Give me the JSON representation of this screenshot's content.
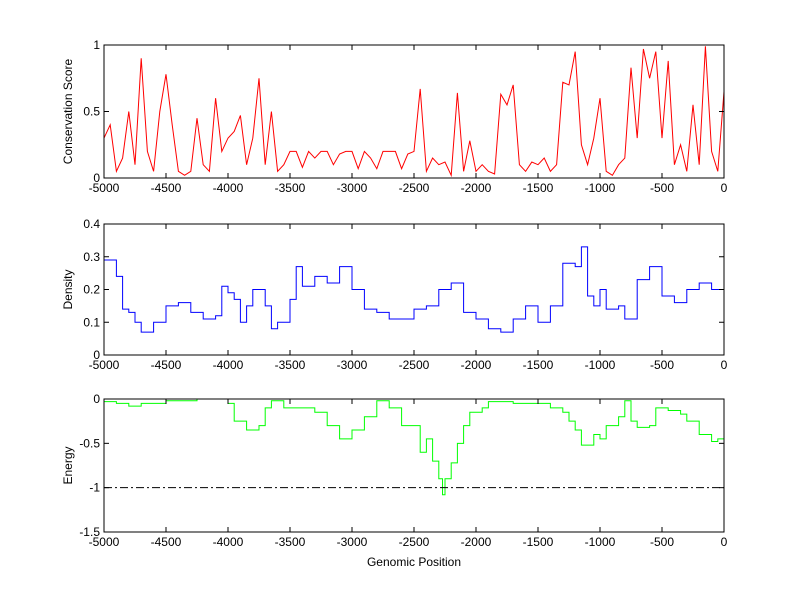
{
  "chart_data": [
    {
      "type": "line",
      "ylabel": "Conservation Score",
      "xlabel": "",
      "xlim": [
        -5000,
        0
      ],
      "ylim": [
        0,
        1
      ],
      "xticks": [
        -5000,
        -4500,
        -4000,
        -3500,
        -3000,
        -2500,
        -2000,
        -1500,
        -1000,
        -500,
        0
      ],
      "yticks": [
        0,
        0.5,
        1
      ],
      "color": "#ff0000",
      "step": false,
      "x_start": -5000,
      "x_step": 50,
      "values": [
        0.3,
        0.4,
        0.05,
        0.15,
        0.5,
        0.1,
        0.9,
        0.2,
        0.05,
        0.5,
        0.78,
        0.4,
        0.05,
        0.02,
        0.05,
        0.45,
        0.1,
        0.05,
        0.6,
        0.2,
        0.3,
        0.35,
        0.47,
        0.1,
        0.3,
        0.75,
        0.1,
        0.5,
        0.05,
        0.1,
        0.2,
        0.2,
        0.08,
        0.2,
        0.15,
        0.2,
        0.2,
        0.1,
        0.18,
        0.2,
        0.2,
        0.07,
        0.2,
        0.15,
        0.07,
        0.2,
        0.2,
        0.2,
        0.07,
        0.18,
        0.2,
        0.67,
        0.05,
        0.15,
        0.1,
        0.12,
        0.02,
        0.64,
        0.05,
        0.28,
        0.05,
        0.1,
        0.05,
        0.03,
        0.63,
        0.55,
        0.7,
        0.1,
        0.05,
        0.12,
        0.1,
        0.15,
        0.05,
        0.1,
        0.72,
        0.7,
        0.95,
        0.25,
        0.1,
        0.3,
        0.6,
        0.05,
        0.02,
        0.1,
        0.15,
        0.83,
        0.3,
        0.97,
        0.75,
        0.95,
        0.3,
        0.88,
        0.1,
        0.25,
        0.05,
        0.55,
        0.1,
        0.99,
        0.2,
        0.05,
        0.65
      ]
    },
    {
      "type": "line",
      "ylabel": "Density",
      "xlabel": "",
      "xlim": [
        -5000,
        0
      ],
      "ylim": [
        0,
        0.4
      ],
      "xticks": [
        -5000,
        -4500,
        -4000,
        -3500,
        -3000,
        -2500,
        -2000,
        -1500,
        -1000,
        -500,
        0
      ],
      "yticks": [
        0,
        0.1,
        0.2,
        0.3,
        0.4
      ],
      "color": "#0000ff",
      "step": true,
      "points": [
        [
          -5000,
          0.29
        ],
        [
          -4900,
          0.24
        ],
        [
          -4850,
          0.14
        ],
        [
          -4800,
          0.13
        ],
        [
          -4750,
          0.1
        ],
        [
          -4700,
          0.07
        ],
        [
          -4600,
          0.1
        ],
        [
          -4500,
          0.15
        ],
        [
          -4400,
          0.16
        ],
        [
          -4300,
          0.13
        ],
        [
          -4200,
          0.11
        ],
        [
          -4100,
          0.12
        ],
        [
          -4050,
          0.21
        ],
        [
          -4000,
          0.19
        ],
        [
          -3950,
          0.17
        ],
        [
          -3900,
          0.1
        ],
        [
          -3850,
          0.15
        ],
        [
          -3800,
          0.2
        ],
        [
          -3700,
          0.15
        ],
        [
          -3650,
          0.08
        ],
        [
          -3600,
          0.1
        ],
        [
          -3500,
          0.17
        ],
        [
          -3450,
          0.27
        ],
        [
          -3400,
          0.21
        ],
        [
          -3300,
          0.24
        ],
        [
          -3200,
          0.22
        ],
        [
          -3100,
          0.27
        ],
        [
          -3000,
          0.2
        ],
        [
          -2900,
          0.14
        ],
        [
          -2800,
          0.13
        ],
        [
          -2700,
          0.11
        ],
        [
          -2600,
          0.11
        ],
        [
          -2500,
          0.14
        ],
        [
          -2400,
          0.15
        ],
        [
          -2300,
          0.2
        ],
        [
          -2200,
          0.22
        ],
        [
          -2100,
          0.13
        ],
        [
          -2000,
          0.11
        ],
        [
          -1900,
          0.08
        ],
        [
          -1800,
          0.07
        ],
        [
          -1700,
          0.11
        ],
        [
          -1600,
          0.15
        ],
        [
          -1500,
          0.1
        ],
        [
          -1400,
          0.15
        ],
        [
          -1300,
          0.28
        ],
        [
          -1200,
          0.27
        ],
        [
          -1150,
          0.33
        ],
        [
          -1100,
          0.18
        ],
        [
          -1050,
          0.15
        ],
        [
          -1000,
          0.2
        ],
        [
          -950,
          0.14
        ],
        [
          -850,
          0.15
        ],
        [
          -800,
          0.11
        ],
        [
          -700,
          0.23
        ],
        [
          -600,
          0.27
        ],
        [
          -500,
          0.18
        ],
        [
          -400,
          0.16
        ],
        [
          -300,
          0.2
        ],
        [
          -200,
          0.22
        ],
        [
          -100,
          0.2
        ],
        [
          0,
          0.14
        ]
      ]
    },
    {
      "type": "line",
      "ylabel": "Energy",
      "xlabel": "Genomic Position",
      "xlim": [
        -5000,
        0
      ],
      "ylim": [
        -1.5,
        0
      ],
      "xticks": [
        -5000,
        -4500,
        -4000,
        -3500,
        -3000,
        -2500,
        -2000,
        -1500,
        -1000,
        -500,
        0
      ],
      "yticks": [
        -1.5,
        -1,
        -0.5,
        0
      ],
      "color": "#00ff00",
      "step": true,
      "reference_line": {
        "y": -1,
        "style": "dash-dot",
        "color": "#000000"
      },
      "points": [
        [
          -5000,
          -0.03
        ],
        [
          -4900,
          -0.05
        ],
        [
          -4800,
          -0.08
        ],
        [
          -4700,
          -0.05
        ],
        [
          -4500,
          -0.02
        ],
        [
          -4250,
          0
        ],
        [
          -4000,
          -0.05
        ],
        [
          -3950,
          -0.25
        ],
        [
          -3850,
          -0.35
        ],
        [
          -3750,
          -0.3
        ],
        [
          -3700,
          -0.1
        ],
        [
          -3650,
          -0.02
        ],
        [
          -3550,
          -0.1
        ],
        [
          -3400,
          -0.1
        ],
        [
          -3300,
          -0.15
        ],
        [
          -3200,
          -0.3
        ],
        [
          -3100,
          -0.45
        ],
        [
          -3000,
          -0.35
        ],
        [
          -2900,
          -0.2
        ],
        [
          -2800,
          -0.02
        ],
        [
          -2700,
          -0.1
        ],
        [
          -2600,
          -0.3
        ],
        [
          -2500,
          -0.3
        ],
        [
          -2450,
          -0.6
        ],
        [
          -2400,
          -0.45
        ],
        [
          -2350,
          -0.7
        ],
        [
          -2300,
          -0.9
        ],
        [
          -2270,
          -1.08
        ],
        [
          -2250,
          -0.9
        ],
        [
          -2200,
          -0.72
        ],
        [
          -2150,
          -0.5
        ],
        [
          -2100,
          -0.3
        ],
        [
          -2050,
          -0.15
        ],
        [
          -1950,
          -0.1
        ],
        [
          -1900,
          -0.03
        ],
        [
          -1700,
          -0.05
        ],
        [
          -1500,
          -0.05
        ],
        [
          -1400,
          -0.1
        ],
        [
          -1300,
          -0.15
        ],
        [
          -1250,
          -0.25
        ],
        [
          -1200,
          -0.35
        ],
        [
          -1150,
          -0.52
        ],
        [
          -1050,
          -0.4
        ],
        [
          -1000,
          -0.45
        ],
        [
          -950,
          -0.3
        ],
        [
          -850,
          -0.2
        ],
        [
          -800,
          -0.02
        ],
        [
          -750,
          -0.25
        ],
        [
          -700,
          -0.32
        ],
        [
          -600,
          -0.3
        ],
        [
          -550,
          -0.1
        ],
        [
          -450,
          -0.13
        ],
        [
          -350,
          -0.17
        ],
        [
          -300,
          -0.25
        ],
        [
          -200,
          -0.4
        ],
        [
          -100,
          -0.48
        ],
        [
          -50,
          -0.45
        ],
        [
          0,
          -0.35
        ]
      ]
    }
  ]
}
